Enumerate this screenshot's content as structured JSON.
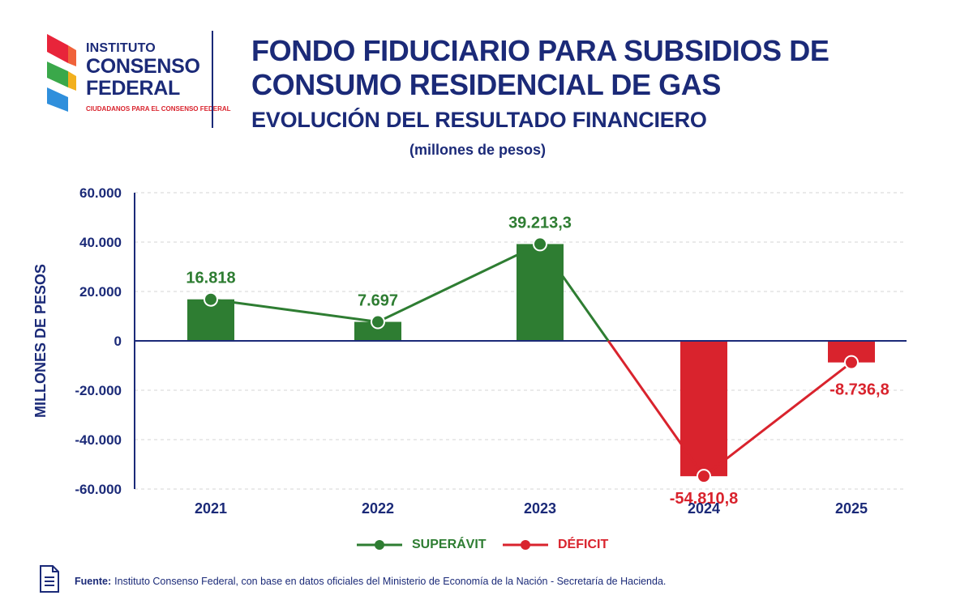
{
  "logo": {
    "line1": "INSTITUTO",
    "line2": "CONSENSO",
    "line3": "FEDERAL",
    "tagline": "CIUDADANOS PARA EL CONSENSO FEDERAL"
  },
  "header": {
    "title": "FONDO FIDUCIARIO PARA SUBSIDIOS DE CONSUMO RESIDENCIAL DE GAS",
    "subtitle": "EVOLUCIÓN DEL RESULTADO FINANCIERO",
    "unit_note": "(millones de pesos)"
  },
  "colors": {
    "navy": "#1b2a78",
    "superavit": "#2e7d32",
    "deficit": "#d9232d"
  },
  "chart_data": {
    "type": "bar",
    "categories": [
      "2021",
      "2022",
      "2023",
      "2024",
      "2025"
    ],
    "series": [
      {
        "name": "",
        "values": [
          16818,
          7697,
          39213.3,
          -54810.8,
          -8736.8
        ],
        "labels": [
          "16.818",
          "7.697",
          "39.213,3",
          "-54.810,8",
          "-8.736,8"
        ]
      }
    ],
    "overlay": "line with markers connecting each value",
    "ylabel": "MILLONES DE PESOS",
    "ylim": [
      -60000,
      60000
    ],
    "yticks": [
      60000,
      40000,
      20000,
      0,
      -20000,
      -40000,
      -60000
    ],
    "ytick_labels": [
      "60.000",
      "40.000",
      "20.000",
      "0",
      "-20.000",
      "-40.000",
      "-60.000"
    ],
    "grid": true,
    "legend": [
      {
        "label": "SUPERÁVIT",
        "color": "#2e7d32"
      },
      {
        "label": "DÉFICIT",
        "color": "#d9232d"
      }
    ],
    "legend_position": "bottom-center"
  },
  "source": {
    "label": "Fuente:",
    "text": "Instituto Consenso Federal, con base en datos oficiales del Ministerio de Economía de la Nación - Secretaría de Hacienda."
  }
}
